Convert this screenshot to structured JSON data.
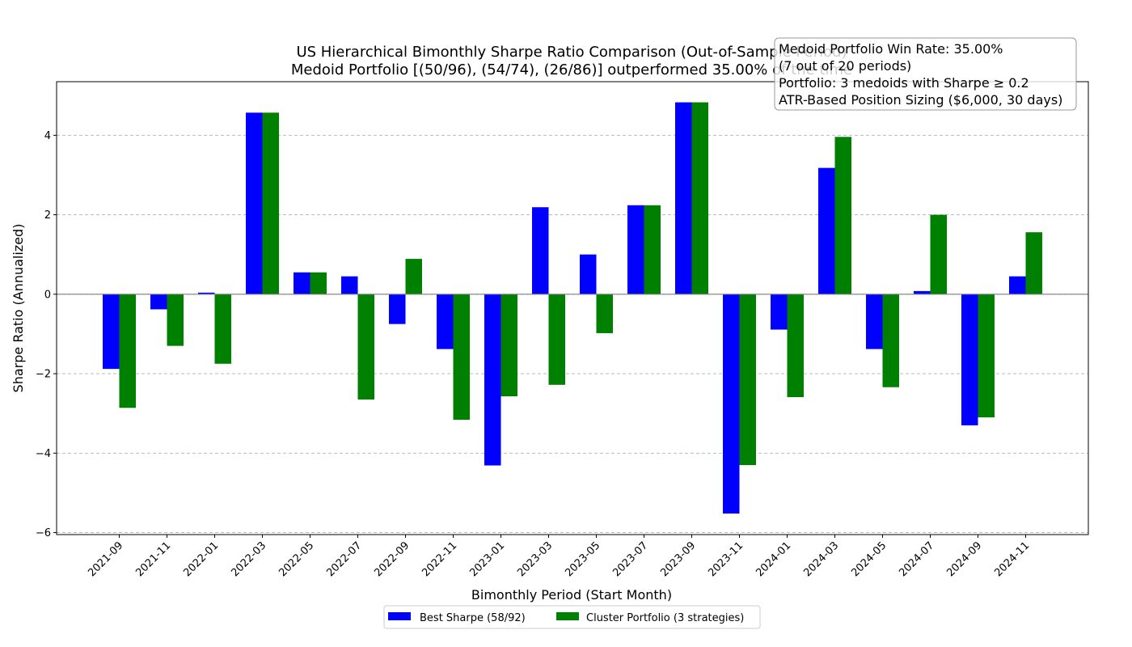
{
  "chart_data": {
    "type": "bar",
    "title": "US Hierarchical Bimonthly Sharpe Ratio Comparison (Out-of-Sample Period)",
    "subtitle": "Medoid Portfolio [(50/96), (54/74), (26/86)] outperformed 35.00% of the time",
    "xlabel": "Bimonthly Period (Start Month)",
    "ylabel": "Sharpe Ratio (Annualized)",
    "ylim": [
      -6.05,
      5.35
    ],
    "yticks": [
      -6,
      -4,
      -2,
      0,
      2,
      4
    ],
    "ytick_labels": [
      "−6",
      "−4",
      "−2",
      "0",
      "2",
      "4"
    ],
    "grid": "y-dashed",
    "legend_position": "bottom-center",
    "categories": [
      "2021-09",
      "2021-11",
      "2022-01",
      "2022-03",
      "2022-05",
      "2022-07",
      "2022-09",
      "2022-11",
      "2023-01",
      "2023-03",
      "2023-05",
      "2023-07",
      "2023-09",
      "2023-11",
      "2024-01",
      "2024-03",
      "2024-05",
      "2024-07",
      "2024-09",
      "2024-11"
    ],
    "series": [
      {
        "name": "Best Sharpe (58/92)",
        "color": "#0000ff",
        "values": [
          -1.88,
          -0.38,
          0.04,
          4.57,
          0.55,
          0.45,
          -0.75,
          -1.38,
          -4.31,
          2.19,
          1.0,
          2.24,
          4.83,
          -5.52,
          -0.89,
          3.18,
          -1.38,
          0.08,
          -3.3,
          0.45
        ]
      },
      {
        "name": "Cluster Portfolio (3 strategies)",
        "color": "#008000",
        "values": [
          -2.86,
          -1.3,
          -1.75,
          4.57,
          0.55,
          -2.65,
          0.89,
          -3.16,
          -2.57,
          -2.28,
          -0.98,
          2.24,
          4.83,
          -4.3,
          -2.59,
          3.96,
          -2.34,
          2.0,
          -3.1,
          1.56
        ]
      }
    ],
    "annotation": [
      "Medoid Portfolio Win Rate: 35.00%",
      "(7 out of 20 periods)",
      "Portfolio: 3 medoids with Sharpe ≥ 0.2",
      "ATR-Based Position Sizing ($6,000, 30 days)"
    ]
  }
}
